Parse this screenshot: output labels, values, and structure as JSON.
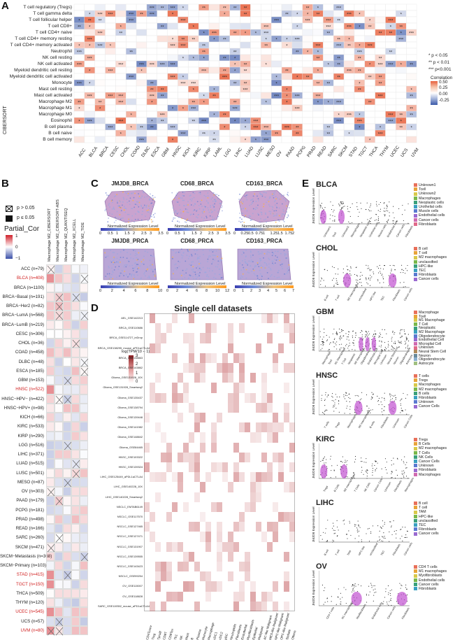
{
  "panelA": {
    "letter": "A",
    "side_label": "CIBERSORT",
    "rows": [
      "T cell regulatory (Tregs)",
      "T cell gamma delta",
      "T cell follicular helper",
      "T cell CD8+",
      "T cell CD4+ naive",
      "T cell CD4+ memory resting",
      "T cell CD4+ memory activated",
      "Neutrophil",
      "NK cell resting",
      "NK cell activated",
      "Myeloid dendritic cell resting",
      "Myeloid dendritic cell activated",
      "Monocyte",
      "Mast cell resting",
      "Mast cell activated",
      "Macrophage M2",
      "Macrophage M1",
      "Macrophage M0",
      "Eosinophil",
      "B cell plasma",
      "B cell naive",
      "B cell memory"
    ],
    "cols": [
      "ACC",
      "BLCA",
      "BRCA",
      "CESC",
      "CHOL",
      "COAD",
      "DLBC",
      "ESCA",
      "GBM",
      "HNSC",
      "KICH",
      "KIRC",
      "KIRP",
      "LAML",
      "LGG",
      "LIHC",
      "LUAD",
      "LUSC",
      "MESO",
      "OV",
      "PAAD",
      "PCPG",
      "PRAD",
      "READ",
      "SARC",
      "SKCM",
      "STAD",
      "TGCT",
      "THCA",
      "THYM",
      "UCEC",
      "UCS",
      "UVM"
    ],
    "sig_legend": [
      "* p < 0.05",
      "** p < 0.01",
      "*** p<0.001"
    ],
    "corr_title": "Correlation",
    "corr_ticks": [
      "0.50",
      "0.25",
      "0.00",
      "-0.25"
    ],
    "colors": {
      "pos": "#e8603c",
      "neg": "#3a58a8",
      "mid": "#ffffff"
    }
  },
  "panelB": {
    "letter": "B",
    "cols": [
      "Macrophage M2_CIBERSORT",
      "Macrophage M2_CIBERSORT-ABS",
      "Macrophage M2_QUANTISEQ",
      "Macrophage M2_XCELL",
      "Macrophage M2_TIDE"
    ],
    "legend_ns": "p > 0.05",
    "legend_s": "p ≤ 0.05",
    "legend_title": "Partial_Cor",
    "legend_ticks": [
      "1",
      "0",
      "−1"
    ],
    "rows": [
      {
        "label": "ACC (n=79)",
        "red": false
      },
      {
        "label": "BLCA (n=408)",
        "red": true
      },
      {
        "label": "BRCA (n=1100)",
        "red": false
      },
      {
        "label": "BRCA−Basal (n=191)",
        "red": false
      },
      {
        "label": "BRCA−Her2 (n=82)",
        "red": false
      },
      {
        "label": "BRCA−LumA (n=568)",
        "red": false
      },
      {
        "label": "BRCA−LumB (n=219)",
        "red": false
      },
      {
        "label": "CESC (n=306)",
        "red": false
      },
      {
        "label": "CHOL (n=36)",
        "red": false
      },
      {
        "label": "COAD (n=458)",
        "red": false
      },
      {
        "label": "DLBC (n=48)",
        "red": false
      },
      {
        "label": "ESCA (n=185)",
        "red": false
      },
      {
        "label": "GBM (n=153)",
        "red": false
      },
      {
        "label": "HNSC (n=522)",
        "red": true
      },
      {
        "label": "HNSC−HPV− (n=422)",
        "red": false
      },
      {
        "label": "HNSC−HPV+ (n=98)",
        "red": false
      },
      {
        "label": "KICH (n=66)",
        "red": false
      },
      {
        "label": "KIRC (n=533)",
        "red": false
      },
      {
        "label": "KIRP (n=290)",
        "red": false
      },
      {
        "label": "LGG (n=516)",
        "red": false
      },
      {
        "label": "LIHC (n=371)",
        "red": false
      },
      {
        "label": "LUAD (n=515)",
        "red": false
      },
      {
        "label": "LUSC (n=501)",
        "red": false
      },
      {
        "label": "MESO (n=87)",
        "red": false
      },
      {
        "label": "OV (n=303)",
        "red": false
      },
      {
        "label": "PAAD (n=179)",
        "red": false
      },
      {
        "label": "PCPG (n=181)",
        "red": false
      },
      {
        "label": "PRAD (n=498)",
        "red": false
      },
      {
        "label": "READ (n=166)",
        "red": false
      },
      {
        "label": "SARC (n=260)",
        "red": false
      },
      {
        "label": "SKCM (n=471)",
        "red": false
      },
      {
        "label": "SKCM−Metastasis (n=368)",
        "red": false
      },
      {
        "label": "SKCM−Primary (n=103)",
        "red": false
      },
      {
        "label": "STAD (n=415)",
        "red": true
      },
      {
        "label": "TGCT (n=150)",
        "red": true
      },
      {
        "label": "THCA (n=509)",
        "red": false
      },
      {
        "label": "THYM (n=120)",
        "red": false
      },
      {
        "label": "UCEC (n=545)",
        "red": true
      },
      {
        "label": "UCS (n=57)",
        "red": false
      },
      {
        "label": "UVM (n=80)",
        "red": true
      }
    ]
  },
  "panelC": {
    "letter": "C",
    "tissues": [
      {
        "title": "JMJD8_BRCA",
        "ticks": [
          "0",
          "0.5",
          "1",
          "1.5",
          "2",
          "2.5",
          "3",
          "3.5"
        ]
      },
      {
        "title": "CD68_BRCA",
        "ticks": [
          "0",
          "0.5",
          "1",
          "1.5",
          "2",
          "2.5",
          "3",
          "3.5"
        ]
      },
      {
        "title": "CD163_BRCA",
        "ticks": [
          "0",
          "0.25",
          "0.5",
          "0.75",
          "1",
          "1.25",
          "1.5",
          "1.75",
          "2"
        ]
      },
      {
        "title": "JMJD8_PRCA",
        "ticks": [
          "0",
          "2",
          "4",
          "6",
          "8",
          "10"
        ]
      },
      {
        "title": "CD68_PRCA",
        "ticks": [
          "0",
          "2",
          "4",
          "6",
          "8",
          "10",
          "12"
        ]
      },
      {
        "title": "CD163_PRCA",
        "ticks": [
          "0",
          "1",
          "2",
          "3",
          "4",
          "5",
          "6",
          "7"
        ]
      }
    ],
    "bar_label": "Normalized Expression Level"
  },
  "panelD": {
    "letter": "D",
    "title": "Single cell datasets",
    "legend_title": "log(TPM/10 + 1)",
    "legend_ticks": [
      "3",
      "2",
      "1",
      "0"
    ],
    "rows": [
      "AEL_GSE142213",
      "BRCA_GSE110686",
      "BRCA_GSE114727_inDrop",
      "BRCA_GSE138295_mouse_aPD1aCTLA4",
      "BRCA_GSE138863",
      "BRCA_GSE143862",
      "Glioma_GSE131928_10X",
      "Glioma_GSE131928_Smartseq2",
      "Glioma_GSE135437",
      "Glioma_GSE138794",
      "Glioma_GSE139448",
      "Glioma_GSE141982",
      "Glioma_GSE148842",
      "Glioma_GSE84465",
      "HNSC_GSE103322",
      "HNSC_GSE139324",
      "LIHC_GSE125449_aPDL1aCTLA4",
      "LIHC_GSE140228_10X",
      "LIHC_GSE140228_Smartseq2",
      "NSCLC_EMTAB6149",
      "NSCLC_GSE117570",
      "NSCLC_GSE127465",
      "NSCLC_GSE127471",
      "NSCLC_GSE131907",
      "NSCLC_GSE139555",
      "NSCLC_GSE143423",
      "NSCLC_GSE99254",
      "OV_GSE115007",
      "OV_GSE118828",
      "SARC_GSE119352_mouse_aPD1aCTLA4"
    ],
    "cols": [
      "CD4Tconv",
      "Treg",
      "Tprolif",
      "CD8T",
      "CD8Tex",
      "Th1",
      "NK",
      "Mast",
      "B",
      "Plasma",
      "Monocyte",
      "Macrophage",
      "cDC1",
      "cDC2",
      "pDC",
      "Neutrophils",
      "Fibroblasts",
      "Endothelial",
      "Myofibroblasts",
      "Epithelial",
      "Malignant",
      "AC-like Malignant",
      "MES-like Malignant",
      "NPC-like Malignant",
      "OPC-like Malignant",
      "Stellate",
      "Others"
    ]
  },
  "panelE": {
    "letter": "E",
    "ylabel": "JMJD8 Expression Level",
    "cancers": [
      {
        "name": "BLCA",
        "cells": [
          "Unknown1",
          "Tcell",
          "Unknown2",
          "Macrophages",
          "Neoplastic cells",
          "Urothelial cells",
          "Muscle cells",
          "Endothelial cells",
          "Cancer cells",
          "Fibroblasts"
        ]
      },
      {
        "name": "CHOL",
        "cells": [
          "B cell",
          "T cell",
          "M2 macrophages",
          "unclassified",
          "HPC-like",
          "TEC",
          "Fibroblasts",
          "Cancer cells"
        ]
      },
      {
        "name": "GBM",
        "cells": [
          "Macrophage",
          "Tcell",
          "M1 Macrophage",
          "T Cell",
          "Neoplastic",
          "M2 Macrophage",
          "Oligodendrocyte",
          "Endothelial Cell",
          "Microglial Cell",
          "Unknown",
          "Neural Stem Cell",
          "Neuron",
          "Oligodendrocyte",
          "Astrocyte"
        ]
      },
      {
        "name": "HNSC",
        "cells": [
          "T cells",
          "Tregs",
          "Macrophages",
          "M2 macrophages",
          "B cells",
          "Fibroblasts",
          "Unknown",
          "Cancer Cells"
        ]
      },
      {
        "name": "KIRC",
        "cells": [
          "Tregs",
          "B Cells",
          "M2 macrophages",
          "T Cells",
          "NK Cells",
          "Cancer Cells",
          "Unknown",
          "Fibroblasts",
          "Macrophages"
        ]
      },
      {
        "name": "LIHC",
        "cells": [
          "B cell",
          "T cell",
          "TAM",
          "HPC-like",
          "unclassified",
          "TEC",
          "Fibroblasts",
          "Cancer cells"
        ]
      },
      {
        "name": "OV",
        "cells": [
          "CD4 T cells",
          "M1 macrophages",
          "Myofibroblasts",
          "Endothelial cells",
          "Cancer cells",
          "Fibroblasts"
        ]
      }
    ]
  }
}
